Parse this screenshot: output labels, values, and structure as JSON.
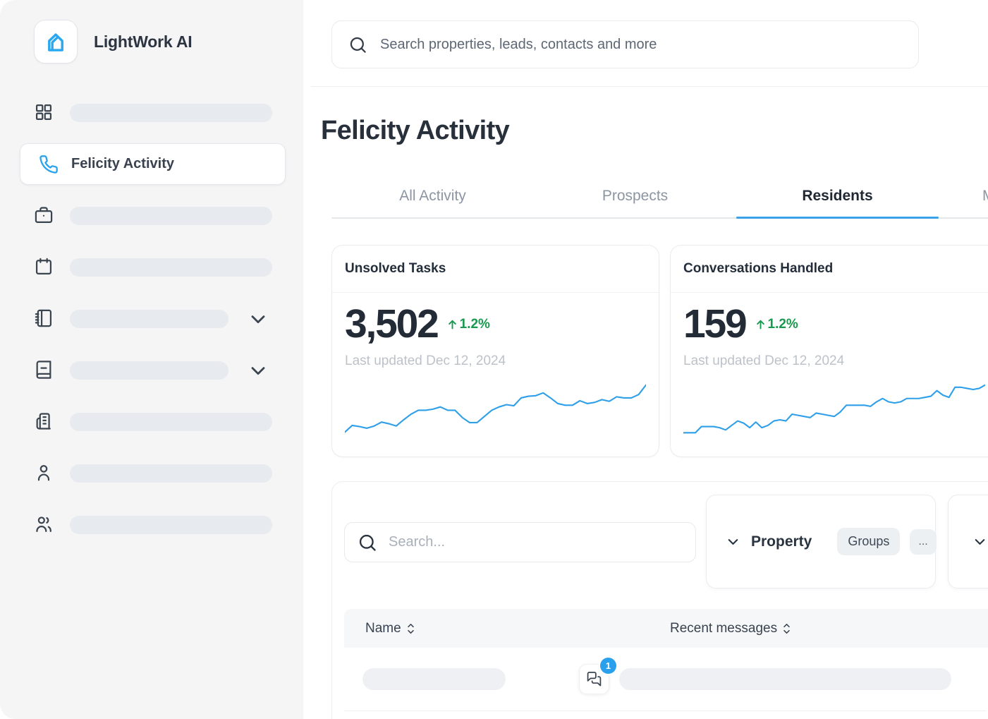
{
  "app": {
    "name": "LightWork AI"
  },
  "colors": {
    "accent_blue": "#2AA3EC",
    "positive_green": "#17994E",
    "sidebar_bg": "#F5F5F6",
    "text_dark": "#28303B",
    "muted_text": "#8C96A2",
    "placeholder_pill": "#E7EAEE"
  },
  "topbar": {
    "search_placeholder": "Search properties, leads, contacts and more"
  },
  "sidebar": {
    "items": [
      {
        "icon": "grid-icon",
        "label": ""
      },
      {
        "icon": "phone-icon",
        "label": "Felicity Activity",
        "active": true
      },
      {
        "icon": "briefcase-icon",
        "label": ""
      },
      {
        "icon": "calendar-icon",
        "label": ""
      },
      {
        "icon": "notebook-icon",
        "label": "",
        "expandable": true
      },
      {
        "icon": "book-icon",
        "label": "",
        "expandable": true
      },
      {
        "icon": "building-icon",
        "label": ""
      },
      {
        "icon": "user-icon",
        "label": ""
      },
      {
        "icon": "users-icon",
        "label": ""
      }
    ]
  },
  "main": {
    "title": "Felicity Activity",
    "tabs": [
      {
        "label": "All Activity",
        "active": false
      },
      {
        "label": "Prospects",
        "active": false
      },
      {
        "label": "Residents",
        "active": true
      },
      {
        "label": "M",
        "active": false
      }
    ],
    "cards": [
      {
        "title": "Unsolved Tasks",
        "value": "3,502",
        "delta": "1.2%",
        "delta_direction": "up",
        "updated": "Last updated Dec 12, 2024",
        "sparkline": [
          8,
          20,
          18,
          15,
          19,
          26,
          23,
          19,
          30,
          40,
          47,
          47,
          49,
          53,
          47,
          47,
          34,
          25,
          25,
          36,
          47,
          53,
          57,
          55,
          69,
          72,
          73,
          78,
          69,
          59,
          56,
          56,
          64,
          59,
          61,
          66,
          63,
          71,
          69,
          69,
          75,
          92
        ]
      },
      {
        "title": "Conversations Handled",
        "value": "159",
        "delta": "1.2%",
        "delta_direction": "up",
        "updated": "Last updated Dec 12, 2024",
        "sparkline": [
          7,
          7,
          7,
          18,
          18,
          18,
          16,
          12,
          20,
          28,
          24,
          16,
          26,
          16,
          20,
          28,
          30,
          28,
          40,
          38,
          36,
          34,
          42,
          40,
          38,
          36,
          44,
          56,
          56,
          56,
          56,
          54,
          62,
          68,
          62,
          60,
          62,
          68,
          68,
          68,
          70,
          72,
          82,
          74,
          70,
          88,
          88,
          86,
          84,
          86,
          92
        ]
      }
    ],
    "toolbar": {
      "search_placeholder": "Search...",
      "property_filter": {
        "label": "Property",
        "chips": [
          "Groups",
          "..."
        ]
      }
    },
    "table": {
      "columns": [
        {
          "label": "Name",
          "sortable": true
        },
        {
          "label": "Recent messages",
          "sortable": true
        }
      ],
      "rows": [
        {
          "name_placeholder": true,
          "unread_count": "1",
          "message_placeholder": true
        }
      ]
    }
  }
}
